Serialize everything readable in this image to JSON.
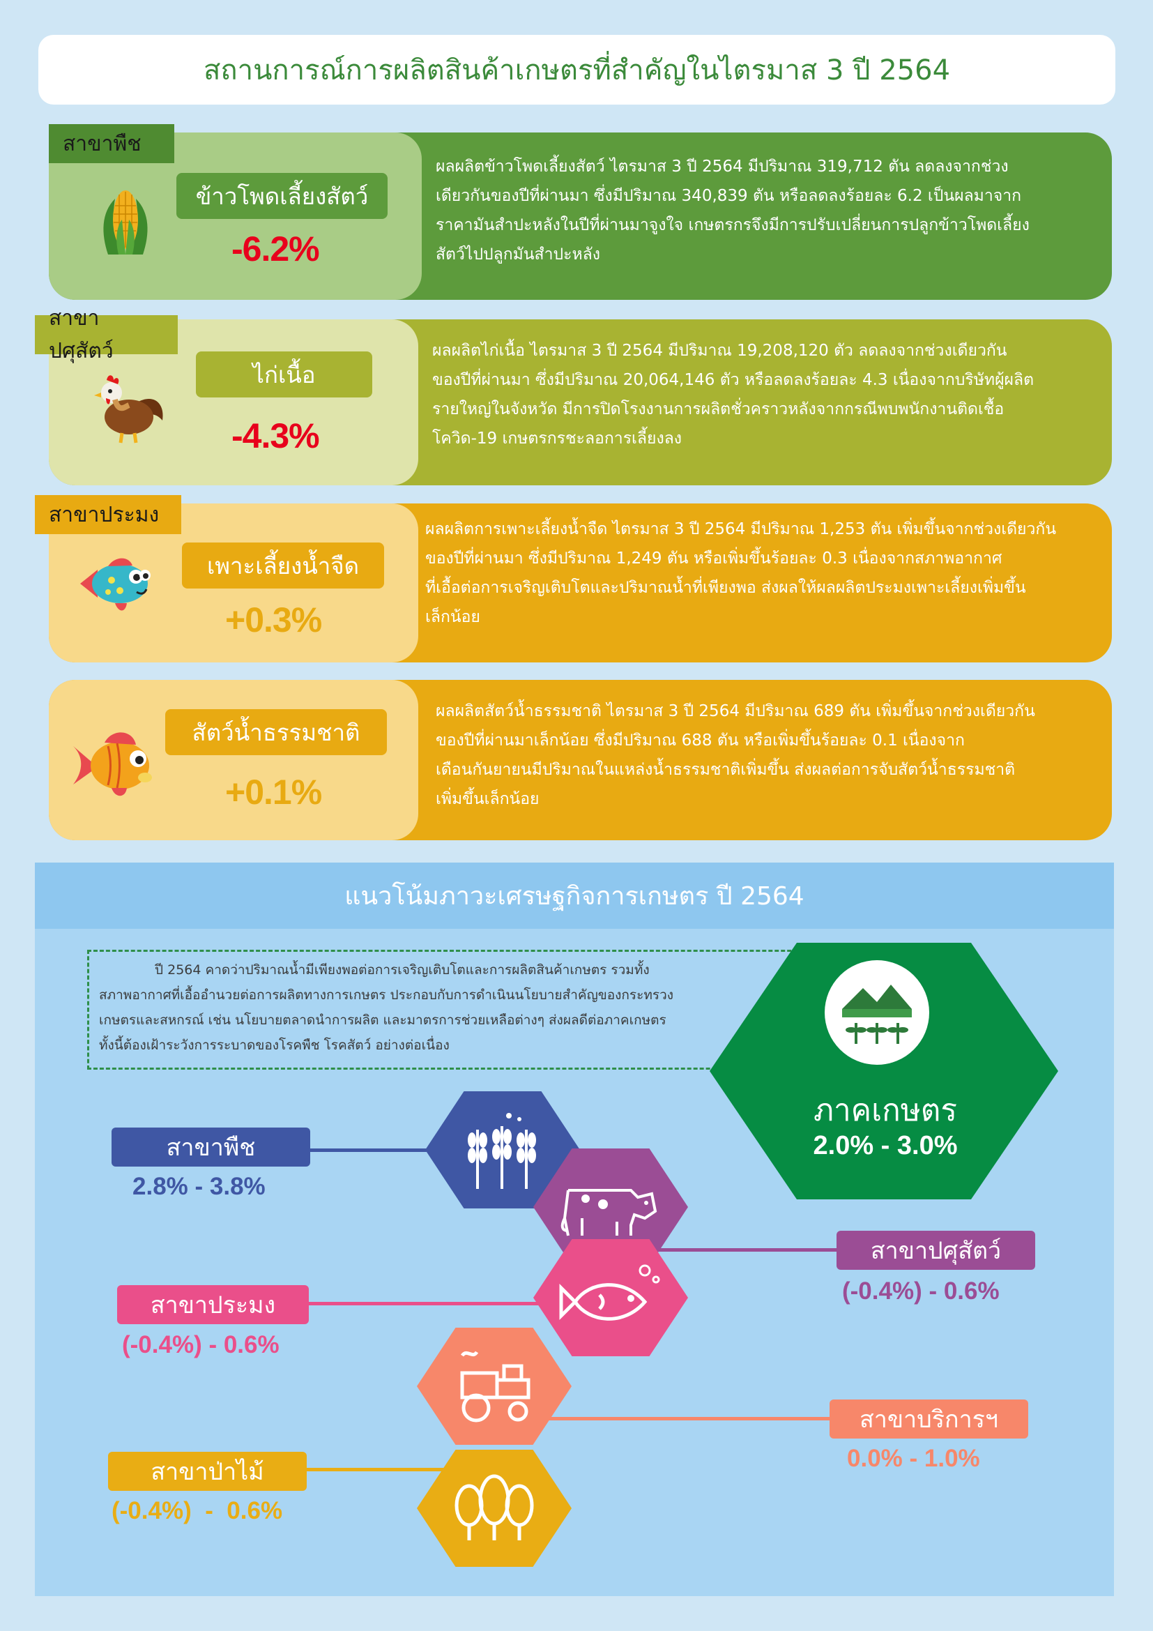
{
  "title": "สถานการณ์การผลิตสินค้าเกษตรที่สำคัญในไตรมาส 3 ปี 2564",
  "cards": [
    {
      "tab": "สาขาพืช",
      "name": "ข้าวโพดเลี้ยงสัตว์",
      "change": "-6.2%",
      "icon": "corn-icon",
      "desc": [
        "ผลผลิตข้าวโพดเลี้ยงสัตว์ ไตรมาส 3 ปี 2564 มีปริมาณ 319,712 ตัน ลดลงจากช่วง",
        "เดียวกันของปีที่ผ่านมา ซึ่งมีปริมาณ 340,839 ตัน หรือลดลงร้อยละ 6.2 เป็นผลมาจาก",
        "ราคามันสำปะหลังในปีที่ผ่านมาจูงใจ เกษตรกรจึงมีการปรับเปลี่ยนการปลูกข้าวโพดเลี้ยง",
        "สัตว์ไปปลูกมันสำปะหลัง"
      ]
    },
    {
      "tab": "สาขาปศุสัตว์",
      "name": "ไก่เนื้อ",
      "change": "-4.3%",
      "icon": "chicken-icon",
      "desc": [
        "ผลผลิตไก่เนื้อ ไตรมาส 3 ปี 2564 มีปริมาณ 19,208,120 ตัว ลดลงจากช่วงเดียวกัน",
        "ของปีที่ผ่านมา ซึ่งมีปริมาณ 20,064,146 ตัว หรือลดลงร้อยละ 4.3 เนื่องจากบริษัทผู้ผลิต",
        "รายใหญ่ในจังหวัด มีการปิดโรงงานการผลิตชั่วคราวหลังจากกรณีพบพนักงานติดเชื้อ",
        "โควิด-19 เกษตรกรชะลอการเลี้ยงลง"
      ]
    },
    {
      "tab": "สาขาประมง",
      "name": "เพาะเลี้ยงน้ำจืด",
      "change": "+0.3%",
      "icon": "fish-icon",
      "desc": [
        "ผลผลิตการเพาะเลี้ยงน้ำจืด ไตรมาส 3 ปี 2564 มีปริมาณ 1,253 ตัน เพิ่มขึ้นจากช่วงเดียวกัน",
        "ของปีที่ผ่านมา ซึ่งมีปริมาณ 1,249 ตัน หรือเพิ่มขึ้นร้อยละ 0.3 เนื่องจากสภาพอากาศ",
        "ที่เอื้อต่อการเจริญเติบโตและปริมาณน้ำที่เพียงพอ ส่งผลให้ผลผลิตประมงเพาะเลี้ยงเพิ่มขึ้น",
        "เล็กน้อย"
      ]
    },
    {
      "tab": "",
      "name": "สัตว์น้ำธรรมชาติ",
      "change": "+0.1%",
      "icon": "goldfish-icon",
      "desc": [
        "ผลผลิตสัตว์น้ำธรรมชาติ ไตรมาส 3 ปี 2564 มีปริมาณ 689 ตัน เพิ่มขึ้นจากช่วงเดียวกัน",
        "ของปีที่ผ่านมาเล็กน้อย ซึ่งมีปริมาณ 688 ตัน หรือเพิ่มขึ้นร้อยละ 0.1 เนื่องจาก",
        "เดือนกันยายนมีปริมาณในแหล่งน้ำธรรมชาติเพิ่มขึ้น ส่งผลต่อการจับสัตว์น้ำธรรมชาติ",
        "เพิ่มขึ้นเล็กน้อย"
      ]
    }
  ],
  "trend": {
    "heading": "แนวโน้มภาวะเศรษฐกิจการเกษตร ปี 2564",
    "note": [
      "ปี 2564 คาดว่าปริมาณน้ำมีเพียงพอต่อการเจริญเติบโตและการผลิตสินค้าเกษตร รวมทั้ง",
      "สภาพอากาศที่เอื้ออำนวยต่อการผลิตทางการเกษตร ประกอบกับการดำเนินนโยบายสำคัญของกระทรวง",
      "เกษตรและสหกรณ์ เช่น นโยบายตลาดนำการผลิต และมาตรการช่วยเหลือต่างๆ ส่งผลดีต่อภาคเกษตร",
      "ทั้งนี้ต้องเฝ้าระวังการระบาดของโรคพืช โรคสัตว์ อย่างต่อเนื่อง"
    ],
    "sector": {
      "name": "ภาคเกษตร",
      "range": "2.0% - 3.0%"
    },
    "branches": [
      {
        "name": "สาขาพืช",
        "range": "2.8% - 3.8%",
        "color": "#3f57a4"
      },
      {
        "name": "สาขาปศุสัตว์",
        "range": "(-0.4%) - 0.6%",
        "color": "#9b4d95"
      },
      {
        "name": "สาขาประมง",
        "range": "(-0.4%) - 0.6%",
        "color": "#ea4f8a"
      },
      {
        "name": "สาขาบริการฯ",
        "range": "0.0% - 1.0%",
        "color": "#f7876a"
      },
      {
        "name": "สาขาป่าไม้",
        "range": "(-0.4%)  -  0.6%",
        "color": "#e9ad14"
      }
    ]
  }
}
